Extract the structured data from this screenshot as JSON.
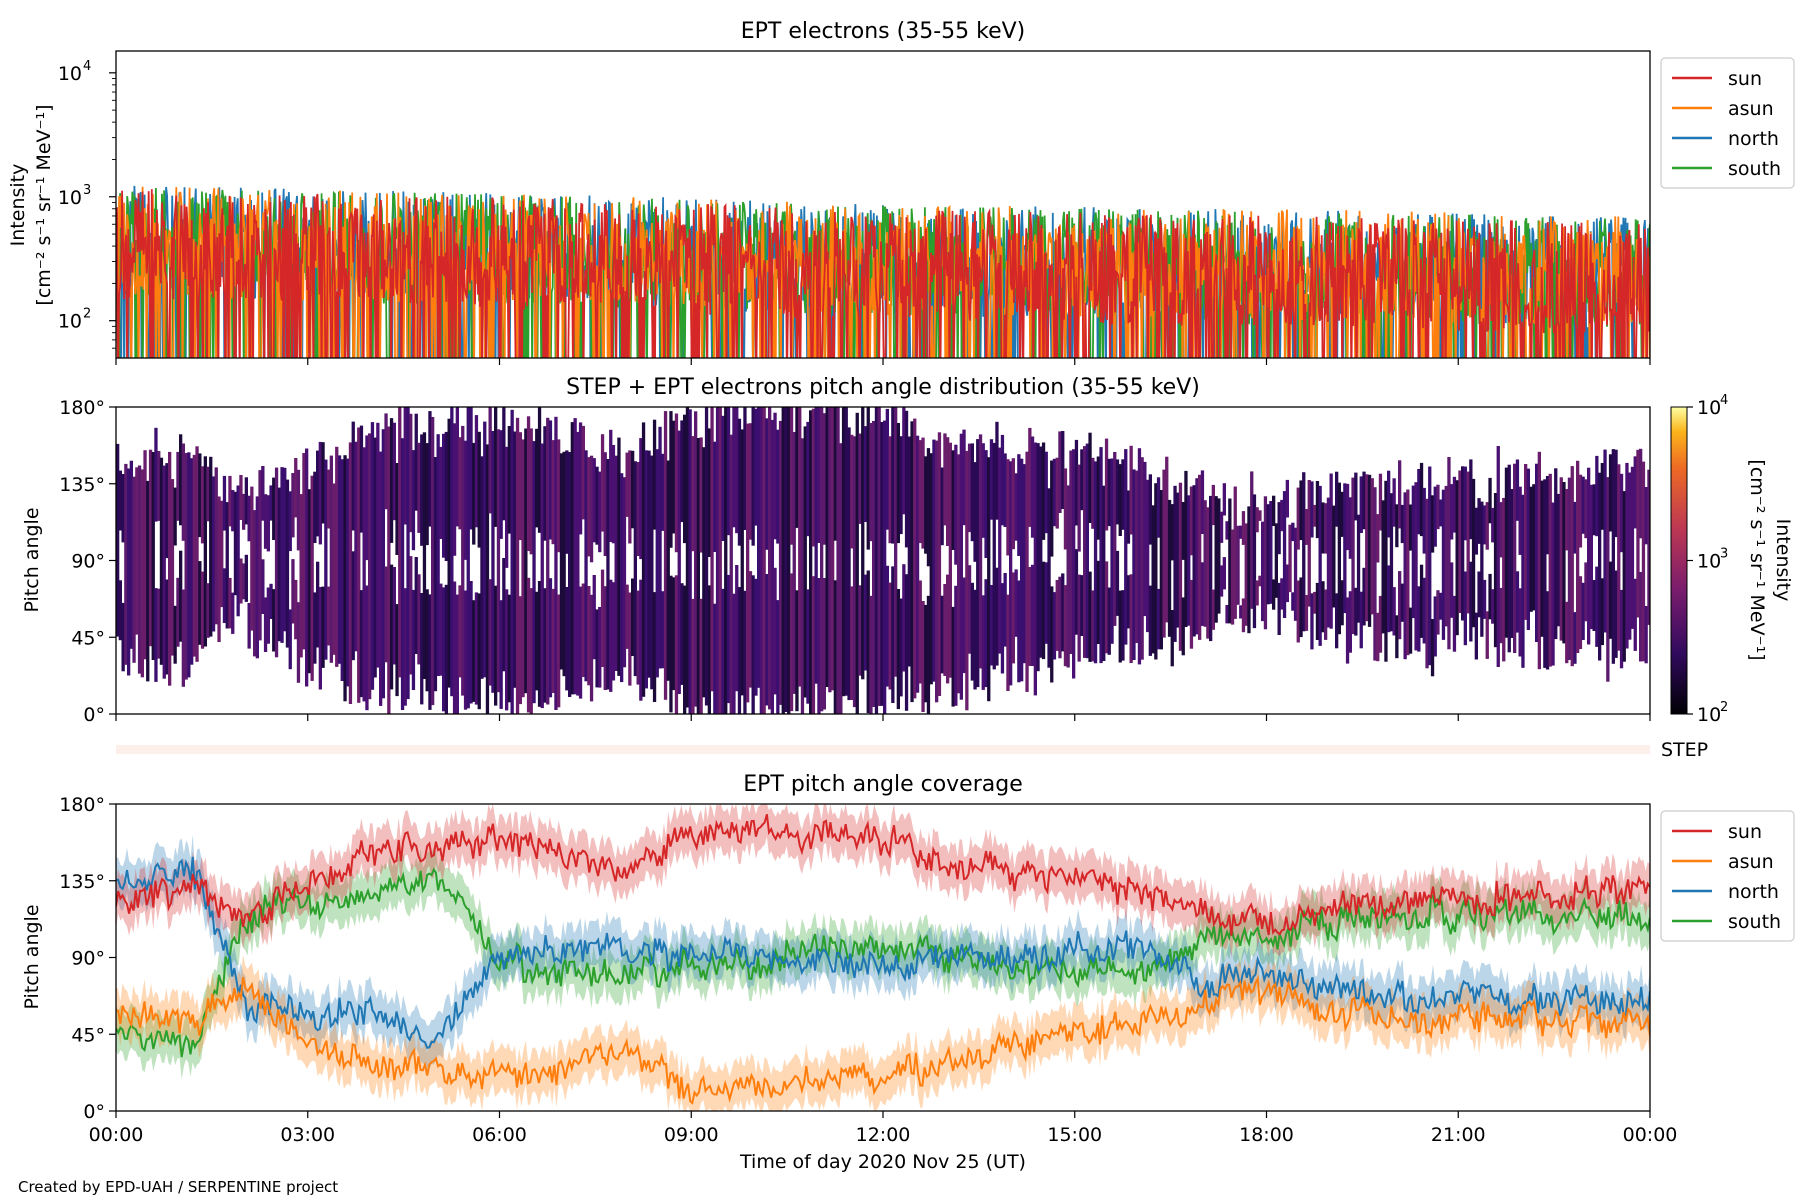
{
  "footer": "Created by EPD-UAH / SERPENTINE project",
  "xlabel": "Time of day 2020 Nov 25 (UT)",
  "xticks": [
    "00:00",
    "03:00",
    "06:00",
    "09:00",
    "12:00",
    "15:00",
    "18:00",
    "21:00",
    "00:00"
  ],
  "colors": {
    "sun": "#d62728",
    "asun": "#ff7f0e",
    "north": "#1f77b4",
    "south": "#2ca02c"
  },
  "chart_data": [
    {
      "type": "line",
      "title": "EPT electrons (35-55 keV)",
      "ylabel": "Intensity",
      "yunit": "[cm⁻² s⁻¹ sr⁻¹ MeV⁻¹]",
      "yscale": "log",
      "ylim": [
        50,
        15000
      ],
      "yticks": [
        {
          "value": 100,
          "base": "10",
          "exp": "2"
        },
        {
          "value": 1000,
          "base": "10",
          "exp": "3"
        },
        {
          "value": 10000,
          "base": "10",
          "exp": "4"
        }
      ],
      "xlim": [
        0,
        24
      ],
      "legend": {
        "placement": "outside-right",
        "entries": [
          "sun",
          "asun",
          "north",
          "south"
        ]
      },
      "series": [
        {
          "name": "north",
          "x": [
            0,
            2,
            4,
            6,
            8,
            10,
            12,
            14,
            16,
            18,
            20,
            22,
            24
          ],
          "values": [
            450,
            420,
            400,
            380,
            360,
            330,
            310,
            300,
            290,
            280,
            270,
            250,
            240
          ]
        },
        {
          "name": "south",
          "x": [
            0,
            2,
            4,
            6,
            8,
            10,
            12,
            14,
            16,
            18,
            20,
            22,
            24
          ],
          "values": [
            430,
            400,
            390,
            370,
            350,
            320,
            300,
            290,
            280,
            270,
            260,
            245,
            235
          ]
        },
        {
          "name": "asun",
          "x": [
            0,
            2,
            4,
            6,
            8,
            10,
            12,
            14,
            16,
            18,
            20,
            22,
            24
          ],
          "values": [
            440,
            410,
            395,
            375,
            355,
            330,
            310,
            300,
            290,
            285,
            275,
            255,
            245
          ]
        },
        {
          "name": "sun",
          "x": [
            0,
            2,
            4,
            6,
            8,
            10,
            12,
            14,
            16,
            18,
            20,
            22,
            24
          ],
          "values": [
            420,
            390,
            370,
            350,
            330,
            300,
            280,
            270,
            260,
            250,
            240,
            225,
            215
          ]
        }
      ]
    },
    {
      "type": "heatmap",
      "title": "STEP + EPT electrons pitch angle distribution (35-55 keV)",
      "ylabel": "Pitch angle",
      "ylim": [
        0,
        180
      ],
      "yticks": [
        "0°",
        "45°",
        "90°",
        "135°",
        "180°"
      ],
      "xlim": [
        0,
        24
      ],
      "colorbar": {
        "label": "Intensity",
        "unit": "[cm⁻² s⁻¹ sr⁻¹ MeV⁻¹]",
        "scale": "log",
        "range": [
          100,
          10000
        ],
        "ticks": [
          {
            "base": "10",
            "exp": "2"
          },
          {
            "base": "10",
            "exp": "3"
          },
          {
            "base": "10",
            "exp": "4"
          }
        ],
        "colormap": "inferno"
      }
    },
    {
      "type": "table",
      "label": "STEP"
    },
    {
      "type": "line",
      "title": "EPT pitch angle coverage",
      "ylabel": "Pitch angle",
      "ylim": [
        0,
        180
      ],
      "yticks": [
        "0°",
        "45°",
        "90°",
        "135°",
        "180°"
      ],
      "xlim": [
        0,
        24
      ],
      "legend": {
        "placement": "outside-right",
        "entries": [
          "sun",
          "asun",
          "north",
          "south"
        ]
      },
      "series": [
        {
          "name": "sun",
          "x": [
            0,
            1.3,
            2,
            3,
            4,
            5,
            6,
            7,
            8,
            9,
            10,
            11,
            12,
            13,
            14,
            15,
            16,
            17,
            18,
            19,
            20,
            21,
            22,
            23,
            24
          ],
          "values": [
            125,
            130,
            110,
            135,
            150,
            155,
            160,
            150,
            140,
            165,
            165,
            160,
            160,
            145,
            140,
            135,
            130,
            115,
            110,
            120,
            125,
            125,
            125,
            128,
            130
          ]
        },
        {
          "name": "asun",
          "x": [
            0,
            1.3,
            2,
            3,
            4,
            5,
            6,
            7,
            8,
            9,
            10,
            11,
            12,
            13,
            14,
            15,
            16,
            17,
            18,
            19,
            20,
            21,
            22,
            23,
            24
          ],
          "values": [
            55,
            55,
            70,
            40,
            30,
            25,
            20,
            25,
            35,
            15,
            15,
            20,
            20,
            30,
            40,
            45,
            50,
            65,
            70,
            60,
            55,
            55,
            55,
            52,
            50
          ]
        },
        {
          "name": "north",
          "x": [
            0,
            1.3,
            2,
            3,
            4,
            5,
            6,
            7,
            8,
            9,
            10,
            11,
            12,
            13,
            14,
            15,
            16,
            17,
            18,
            19,
            20,
            21,
            22,
            23,
            24
          ],
          "values": [
            135,
            140,
            60,
            55,
            55,
            40,
            90,
            95,
            95,
            90,
            90,
            85,
            85,
            90,
            90,
            95,
            100,
            75,
            80,
            70,
            65,
            65,
            65,
            65,
            65
          ]
        },
        {
          "name": "south",
          "x": [
            0,
            1.3,
            2,
            3,
            4,
            5,
            6,
            7,
            8,
            9,
            10,
            11,
            12,
            13,
            14,
            15,
            16,
            17,
            18,
            19,
            20,
            21,
            22,
            23,
            24
          ],
          "values": [
            45,
            40,
            115,
            120,
            125,
            135,
            90,
            80,
            80,
            85,
            85,
            95,
            95,
            90,
            85,
            80,
            80,
            100,
            100,
            110,
            115,
            115,
            115,
            115,
            115
          ]
        }
      ]
    }
  ]
}
